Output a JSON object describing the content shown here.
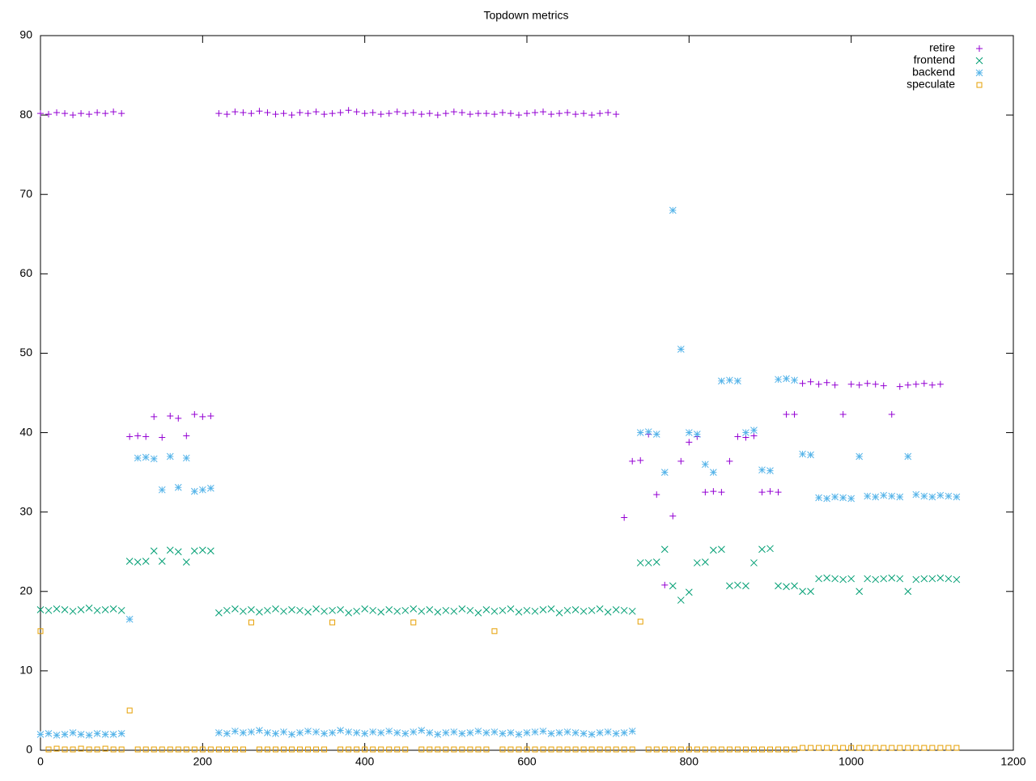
{
  "chart_data": {
    "type": "scatter",
    "title": "Topdown metrics",
    "x": [
      0,
      10,
      20,
      30,
      40,
      50,
      60,
      70,
      80,
      90,
      100,
      110,
      120,
      130,
      140,
      150,
      160,
      170,
      180,
      190,
      200,
      210,
      220,
      230,
      240,
      250,
      260,
      270,
      280,
      290,
      300,
      310,
      320,
      330,
      340,
      350,
      360,
      370,
      380,
      390,
      400,
      410,
      420,
      430,
      440,
      450,
      460,
      470,
      480,
      490,
      500,
      510,
      520,
      530,
      540,
      550,
      560,
      570,
      580,
      590,
      600,
      610,
      620,
      630,
      640,
      650,
      660,
      670,
      680,
      690,
      700,
      710,
      720,
      730,
      740,
      750,
      760,
      770,
      780,
      790,
      800,
      810,
      820,
      830,
      840,
      850,
      860,
      870,
      880,
      890,
      900,
      910,
      920,
      930,
      940,
      950,
      960,
      970,
      980,
      990,
      1000,
      1010,
      1020,
      1030,
      1040,
      1050,
      1060,
      1070,
      1080,
      1090,
      1100,
      1110,
      1120,
      1130
    ],
    "series": [
      {
        "name": "retire",
        "color": "#9400d3",
        "marker": "plus",
        "values": [
          80.2,
          80.1,
          80.3,
          80.2,
          80.0,
          80.2,
          80.1,
          80.3,
          80.2,
          80.4,
          80.2,
          39.5,
          39.6,
          39.5,
          42.0,
          39.4,
          42.1,
          41.8,
          39.6,
          42.3,
          42.0,
          42.1,
          80.2,
          80.1,
          80.4,
          80.3,
          80.2,
          80.5,
          80.3,
          80.1,
          80.2,
          80.0,
          80.3,
          80.2,
          80.4,
          80.1,
          80.2,
          80.3,
          80.6,
          80.4,
          80.2,
          80.3,
          80.1,
          80.2,
          80.4,
          80.2,
          80.3,
          80.1,
          80.2,
          80.0,
          80.2,
          80.4,
          80.3,
          80.1,
          80.2,
          80.2,
          80.1,
          80.3,
          80.2,
          80.0,
          80.2,
          80.3,
          80.4,
          80.1,
          80.2,
          80.3,
          80.1,
          80.2,
          80.0,
          80.2,
          80.3,
          80.1,
          29.3,
          36.4,
          36.5,
          39.8,
          32.2,
          20.8,
          29.5,
          36.4,
          38.8,
          39.5,
          32.5,
          32.6,
          32.5,
          36.4,
          39.5,
          39.4,
          39.6,
          32.5,
          32.6,
          32.5,
          42.3,
          42.3,
          46.2,
          46.4,
          46.1,
          46.3,
          46.0,
          42.3,
          46.1,
          46.0,
          46.2,
          46.1,
          45.9,
          42.3,
          45.8,
          46.0,
          46.1,
          46.2,
          46.0,
          46.1
        ]
      },
      {
        "name": "frontend",
        "color": "#009e73",
        "marker": "cross",
        "values": [
          17.7,
          17.6,
          17.8,
          17.7,
          17.5,
          17.7,
          17.9,
          17.6,
          17.7,
          17.8,
          17.6,
          23.8,
          23.7,
          23.8,
          25.1,
          23.8,
          25.2,
          25.0,
          23.7,
          25.1,
          25.2,
          25.1,
          17.3,
          17.6,
          17.8,
          17.5,
          17.7,
          17.4,
          17.6,
          17.8,
          17.5,
          17.7,
          17.6,
          17.4,
          17.8,
          17.5,
          17.6,
          17.7,
          17.3,
          17.5,
          17.8,
          17.6,
          17.4,
          17.7,
          17.5,
          17.6,
          17.8,
          17.5,
          17.7,
          17.4,
          17.6,
          17.5,
          17.8,
          17.6,
          17.3,
          17.7,
          17.5,
          17.6,
          17.8,
          17.4,
          17.6,
          17.5,
          17.7,
          17.8,
          17.3,
          17.6,
          17.7,
          17.5,
          17.6,
          17.8,
          17.4,
          17.7,
          17.6,
          17.5,
          23.6,
          23.6,
          23.7,
          25.3,
          20.7,
          18.9,
          19.9,
          23.6,
          23.7,
          25.2,
          25.3,
          20.7,
          20.8,
          20.7,
          23.6,
          25.3,
          25.4,
          20.7,
          20.6,
          20.7,
          20.0,
          20.0,
          21.6,
          21.7,
          21.6,
          21.5,
          21.6,
          20.0,
          21.6,
          21.5,
          21.6,
          21.7,
          21.6,
          20.0,
          21.5,
          21.6,
          21.6,
          21.7,
          21.6,
          21.5
        ]
      },
      {
        "name": "backend",
        "color": "#56b4e9",
        "marker": "star",
        "values": [
          2.0,
          2.1,
          1.9,
          2.0,
          2.2,
          2.0,
          1.9,
          2.1,
          2.0,
          2.0,
          2.1,
          16.5,
          36.8,
          36.9,
          36.7,
          32.8,
          37.0,
          33.1,
          36.8,
          32.6,
          32.8,
          33.0,
          2.2,
          2.1,
          2.4,
          2.2,
          2.3,
          2.5,
          2.2,
          2.1,
          2.3,
          2.0,
          2.2,
          2.4,
          2.3,
          2.1,
          2.2,
          2.5,
          2.3,
          2.2,
          2.1,
          2.3,
          2.2,
          2.4,
          2.2,
          2.1,
          2.3,
          2.5,
          2.2,
          2.0,
          2.2,
          2.3,
          2.1,
          2.2,
          2.4,
          2.2,
          2.3,
          2.1,
          2.2,
          2.0,
          2.2,
          2.3,
          2.4,
          2.1,
          2.2,
          2.3,
          2.2,
          2.1,
          2.0,
          2.2,
          2.3,
          2.1,
          2.2,
          2.4,
          40.0,
          40.1,
          39.8,
          35.0,
          68.0,
          50.5,
          40.0,
          39.8,
          36.0,
          35.0,
          46.5,
          46.6,
          46.5,
          40.0,
          40.3,
          35.3,
          35.2,
          46.7,
          46.8,
          46.6,
          37.3,
          37.2,
          31.8,
          31.7,
          31.9,
          31.8,
          31.7,
          37.0,
          32.0,
          31.9,
          32.1,
          32.0,
          31.9,
          37.0,
          32.2,
          32.0,
          31.9,
          32.1,
          32.0,
          31.9
        ]
      },
      {
        "name": "speculate",
        "color": "#e69f00",
        "marker": "square",
        "values": [
          15.0,
          0.1,
          0.2,
          0.1,
          0.1,
          0.2,
          0.1,
          0.1,
          0.2,
          0.1,
          0.1,
          5.0,
          0.1,
          0.1,
          0.1,
          0.1,
          0.1,
          0.1,
          0.1,
          0.1,
          0.1,
          0.1,
          0.1,
          0.1,
          0.1,
          0.1,
          16.1,
          0.1,
          0.1,
          0.1,
          0.1,
          0.1,
          0.1,
          0.1,
          0.1,
          0.1,
          16.1,
          0.1,
          0.1,
          0.1,
          0.1,
          0.1,
          0.1,
          0.1,
          0.1,
          0.1,
          16.1,
          0.1,
          0.1,
          0.1,
          0.1,
          0.1,
          0.1,
          0.1,
          0.1,
          0.1,
          15.0,
          0.1,
          0.1,
          0.1,
          0.1,
          0.1,
          0.1,
          0.1,
          0.1,
          0.1,
          0.1,
          0.1,
          0.1,
          0.1,
          0.1,
          0.1,
          0.1,
          0.1,
          16.2,
          0.1,
          0.1,
          0.1,
          0.1,
          0.1,
          0.1,
          0.1,
          0.1,
          0.1,
          0.1,
          0.1,
          0.1,
          0.1,
          0.1,
          0.1,
          0.1,
          0.1,
          0.1,
          0.1,
          0.3,
          0.3,
          0.3,
          0.3,
          0.3,
          0.3,
          0.3,
          0.3,
          0.3,
          0.3,
          0.3,
          0.3,
          0.3,
          0.3,
          0.3,
          0.3,
          0.3,
          0.3,
          0.3,
          0.3
        ]
      }
    ],
    "xlim": [
      0,
      1200
    ],
    "xticks": [
      0,
      200,
      400,
      600,
      800,
      1000,
      1200
    ],
    "ylim": [
      0,
      90
    ],
    "yticks": [
      0,
      10,
      20,
      30,
      40,
      50,
      60,
      70,
      80,
      90
    ],
    "legend": "top right"
  }
}
